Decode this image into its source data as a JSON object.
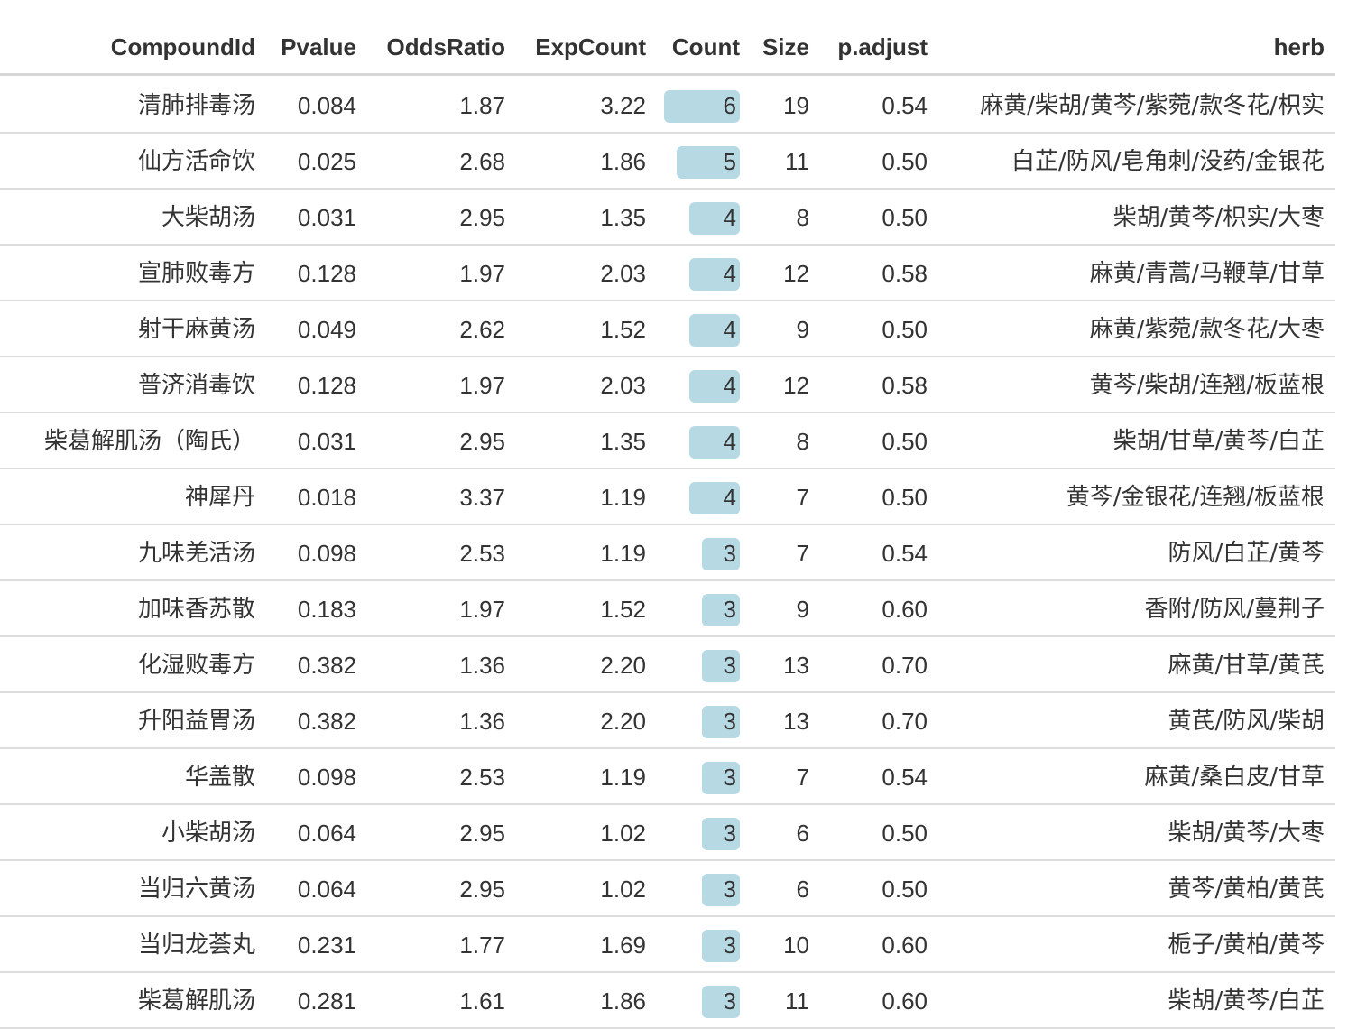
{
  "chart_data": {
    "type": "table",
    "columns": [
      "CompoundId",
      "Pvalue",
      "OddsRatio",
      "ExpCount",
      "Count",
      "Size",
      "p.adjust",
      "herb"
    ],
    "count_max": 6,
    "rows": [
      {
        "CompoundId": "清肺排毒汤",
        "Pvalue": "0.084",
        "OddsRatio": "1.87",
        "ExpCount": "3.22",
        "Count": "6",
        "Size": "19",
        "p.adjust": "0.54",
        "herb": "麻黄/柴胡/黄芩/紫菀/款冬花/枳实"
      },
      {
        "CompoundId": "仙方活命饮",
        "Pvalue": "0.025",
        "OddsRatio": "2.68",
        "ExpCount": "1.86",
        "Count": "5",
        "Size": "11",
        "p.adjust": "0.50",
        "herb": "白芷/防风/皂角刺/没药/金银花"
      },
      {
        "CompoundId": "大柴胡汤",
        "Pvalue": "0.031",
        "OddsRatio": "2.95",
        "ExpCount": "1.35",
        "Count": "4",
        "Size": "8",
        "p.adjust": "0.50",
        "herb": "柴胡/黄芩/枳实/大枣"
      },
      {
        "CompoundId": "宣肺败毒方",
        "Pvalue": "0.128",
        "OddsRatio": "1.97",
        "ExpCount": "2.03",
        "Count": "4",
        "Size": "12",
        "p.adjust": "0.58",
        "herb": "麻黄/青蒿/马鞭草/甘草"
      },
      {
        "CompoundId": "射干麻黄汤",
        "Pvalue": "0.049",
        "OddsRatio": "2.62",
        "ExpCount": "1.52",
        "Count": "4",
        "Size": "9",
        "p.adjust": "0.50",
        "herb": "麻黄/紫菀/款冬花/大枣"
      },
      {
        "CompoundId": "普济消毒饮",
        "Pvalue": "0.128",
        "OddsRatio": "1.97",
        "ExpCount": "2.03",
        "Count": "4",
        "Size": "12",
        "p.adjust": "0.58",
        "herb": "黄芩/柴胡/连翘/板蓝根"
      },
      {
        "CompoundId": "柴葛解肌汤（陶氏）",
        "Pvalue": "0.031",
        "OddsRatio": "2.95",
        "ExpCount": "1.35",
        "Count": "4",
        "Size": "8",
        "p.adjust": "0.50",
        "herb": "柴胡/甘草/黄芩/白芷"
      },
      {
        "CompoundId": "神犀丹",
        "Pvalue": "0.018",
        "OddsRatio": "3.37",
        "ExpCount": "1.19",
        "Count": "4",
        "Size": "7",
        "p.adjust": "0.50",
        "herb": "黄芩/金银花/连翘/板蓝根"
      },
      {
        "CompoundId": "九味羌活汤",
        "Pvalue": "0.098",
        "OddsRatio": "2.53",
        "ExpCount": "1.19",
        "Count": "3",
        "Size": "7",
        "p.adjust": "0.54",
        "herb": "防风/白芷/黄芩"
      },
      {
        "CompoundId": "加味香苏散",
        "Pvalue": "0.183",
        "OddsRatio": "1.97",
        "ExpCount": "1.52",
        "Count": "3",
        "Size": "9",
        "p.adjust": "0.60",
        "herb": "香附/防风/蔓荆子"
      },
      {
        "CompoundId": "化湿败毒方",
        "Pvalue": "0.382",
        "OddsRatio": "1.36",
        "ExpCount": "2.20",
        "Count": "3",
        "Size": "13",
        "p.adjust": "0.70",
        "herb": "麻黄/甘草/黄芪"
      },
      {
        "CompoundId": "升阳益胃汤",
        "Pvalue": "0.382",
        "OddsRatio": "1.36",
        "ExpCount": "2.20",
        "Count": "3",
        "Size": "13",
        "p.adjust": "0.70",
        "herb": "黄芪/防风/柴胡"
      },
      {
        "CompoundId": "华盖散",
        "Pvalue": "0.098",
        "OddsRatio": "2.53",
        "ExpCount": "1.19",
        "Count": "3",
        "Size": "7",
        "p.adjust": "0.54",
        "herb": "麻黄/桑白皮/甘草"
      },
      {
        "CompoundId": "小柴胡汤",
        "Pvalue": "0.064",
        "OddsRatio": "2.95",
        "ExpCount": "1.02",
        "Count": "3",
        "Size": "6",
        "p.adjust": "0.50",
        "herb": "柴胡/黄芩/大枣"
      },
      {
        "CompoundId": "当归六黄汤",
        "Pvalue": "0.064",
        "OddsRatio": "2.95",
        "ExpCount": "1.02",
        "Count": "3",
        "Size": "6",
        "p.adjust": "0.50",
        "herb": "黄芩/黄柏/黄芪"
      },
      {
        "CompoundId": "当归龙荟丸",
        "Pvalue": "0.231",
        "OddsRatio": "1.77",
        "ExpCount": "1.69",
        "Count": "3",
        "Size": "10",
        "p.adjust": "0.60",
        "herb": "栀子/黄柏/黄芩"
      },
      {
        "CompoundId": "柴葛解肌汤",
        "Pvalue": "0.281",
        "OddsRatio": "1.61",
        "ExpCount": "1.86",
        "Count": "3",
        "Size": "11",
        "p.adjust": "0.60",
        "herb": "柴胡/黄芩/白芷"
      }
    ],
    "bar_color": "#b7d9e4"
  }
}
